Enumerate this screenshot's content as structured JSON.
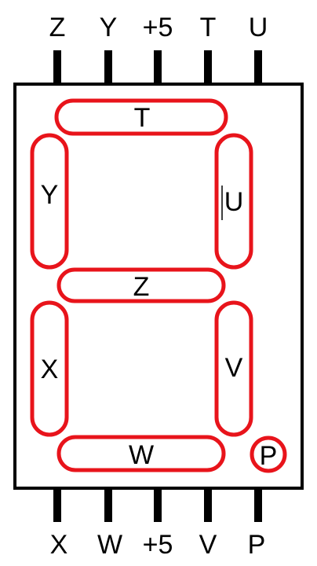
{
  "top_pins": [
    "Z",
    "Y",
    "+5",
    "T",
    "U"
  ],
  "bottom_pins": [
    "X",
    "W",
    "+5",
    "V",
    "P"
  ],
  "segments": {
    "t": "T",
    "y": "Y",
    "u": "U",
    "z": "Z",
    "x": "X",
    "v": "V",
    "w": "W",
    "p": "P"
  },
  "colors": {
    "segment": "#e8141b",
    "outline": "#000000"
  }
}
